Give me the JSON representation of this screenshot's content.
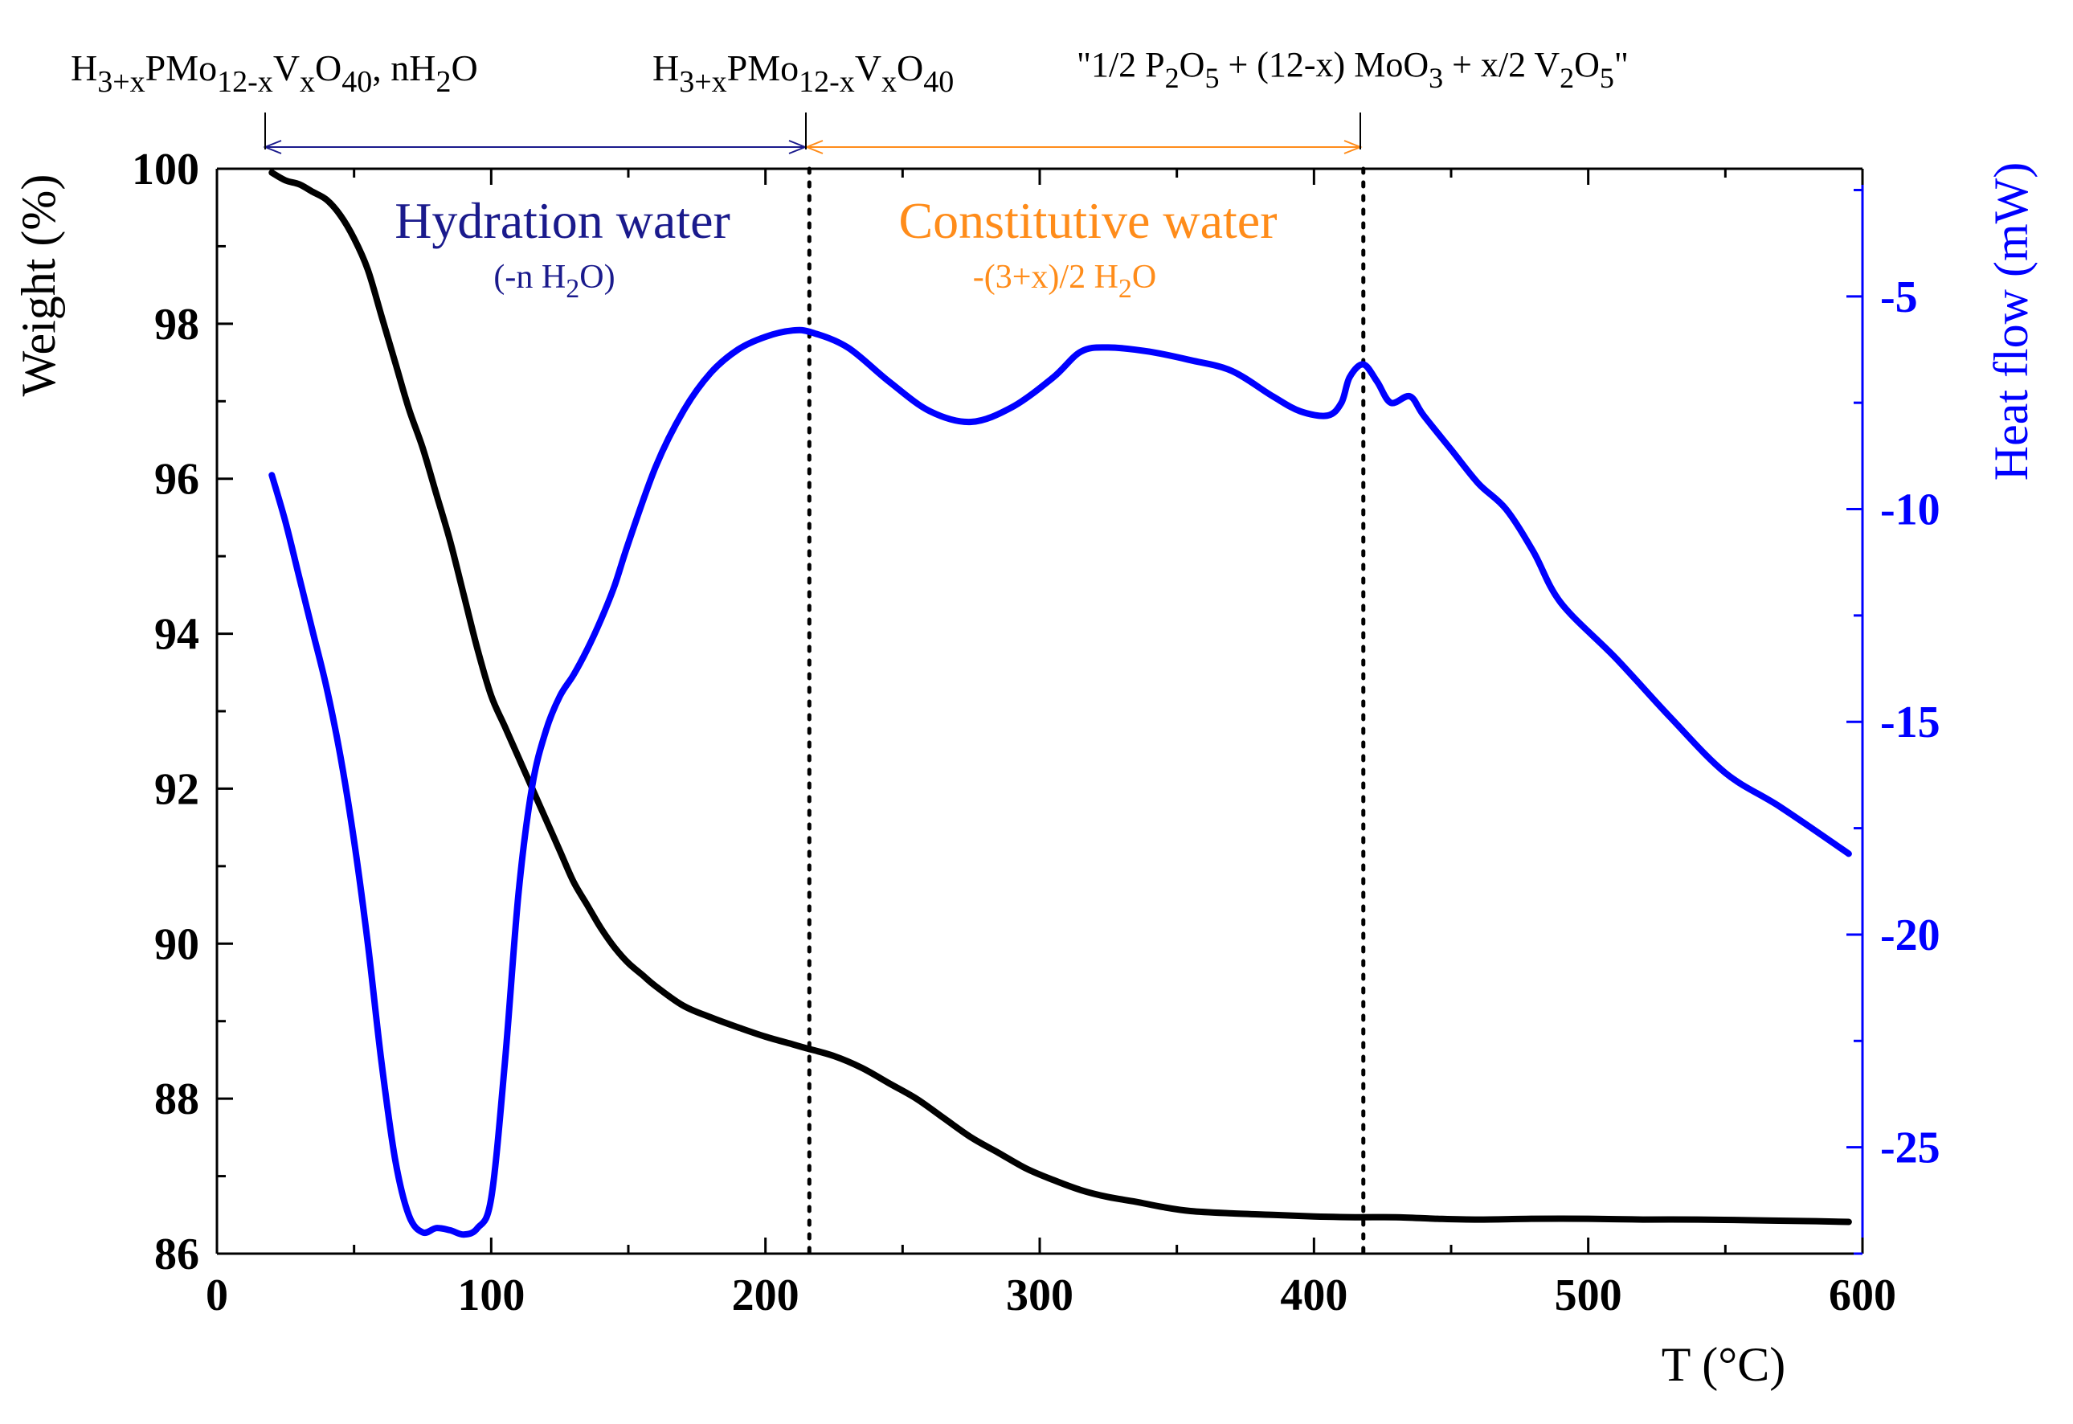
{
  "chart_data": {
    "type": "line",
    "title": "",
    "xlabel": "T (°C)",
    "ylabel_left": "Weight (%)",
    "ylabel_right": "Heat flow (mW)",
    "xlim": [
      0,
      600
    ],
    "ylim_left": [
      86,
      100
    ],
    "ylim_right": [
      -27.5,
      -2
    ],
    "x_ticks": [
      0,
      100,
      200,
      300,
      400,
      500,
      600
    ],
    "y_left_ticks": [
      86,
      88,
      90,
      92,
      94,
      96,
      98,
      100
    ],
    "y_right_ticks": [
      -25,
      -20,
      -15,
      -10,
      -5
    ],
    "x_tick_labels": [
      "0",
      "100",
      "200",
      "300",
      "400",
      "500",
      "600"
    ],
    "y_left_tick_labels": [
      "86",
      "88",
      "90",
      "92",
      "94",
      "96",
      "98",
      "100"
    ],
    "y_right_tick_labels": [
      "-25",
      "-20",
      "-15",
      "-10",
      "-5"
    ],
    "series": [
      {
        "name": "Weight",
        "axis": "left",
        "color": "#000000",
        "x": [
          20,
          25,
          30,
          35,
          40,
          45,
          50,
          55,
          60,
          65,
          70,
          75,
          80,
          85,
          90,
          95,
          100,
          105,
          110,
          115,
          120,
          125,
          130,
          135,
          140,
          145,
          150,
          155,
          160,
          170,
          180,
          190,
          200,
          210,
          215,
          225,
          235,
          245,
          255,
          265,
          275,
          285,
          295,
          305,
          315,
          325,
          335,
          345,
          355,
          370,
          385,
          400,
          415,
          430,
          445,
          460,
          480,
          500,
          520,
          540,
          560,
          580,
          595
        ],
        "y": [
          99.95,
          99.85,
          99.8,
          99.7,
          99.6,
          99.4,
          99.1,
          98.7,
          98.1,
          97.5,
          96.9,
          96.4,
          95.8,
          95.2,
          94.5,
          93.8,
          93.2,
          92.8,
          92.4,
          92.0,
          91.6,
          91.2,
          90.8,
          90.5,
          90.2,
          89.95,
          89.75,
          89.6,
          89.45,
          89.2,
          89.05,
          88.92,
          88.8,
          88.7,
          88.65,
          88.55,
          88.4,
          88.2,
          88.0,
          87.75,
          87.5,
          87.3,
          87.1,
          86.95,
          86.82,
          86.73,
          86.67,
          86.6,
          86.55,
          86.52,
          86.5,
          86.48,
          86.47,
          86.47,
          86.45,
          86.44,
          86.45,
          86.45,
          86.44,
          86.44,
          86.43,
          86.42,
          86.41
        ]
      },
      {
        "name": "Heat flow",
        "axis": "right",
        "color": "#0000ff",
        "x": [
          20,
          25,
          30,
          35,
          40,
          45,
          50,
          55,
          60,
          65,
          70,
          75,
          80,
          85,
          90,
          95,
          100,
          105,
          110,
          115,
          120,
          125,
          130,
          135,
          140,
          145,
          150,
          160,
          170,
          180,
          190,
          200,
          210,
          217,
          230,
          245,
          260,
          275,
          290,
          305,
          315,
          325,
          340,
          355,
          370,
          385,
          395,
          405,
          410,
          413,
          418,
          423,
          428,
          435,
          440,
          450,
          460,
          470,
          480,
          490,
          510,
          530,
          550,
          570,
          595
        ],
        "y": [
          -9.2,
          -10.3,
          -11.6,
          -12.9,
          -14.2,
          -15.8,
          -17.8,
          -20.2,
          -23.0,
          -25.3,
          -26.6,
          -27.0,
          -26.9,
          -26.95,
          -27.05,
          -26.9,
          -26.2,
          -23.0,
          -19.0,
          -16.5,
          -15.2,
          -14.4,
          -13.9,
          -13.3,
          -12.6,
          -11.8,
          -10.8,
          -9.0,
          -7.7,
          -6.8,
          -6.25,
          -5.95,
          -5.8,
          -5.85,
          -6.2,
          -7.0,
          -7.7,
          -7.95,
          -7.6,
          -6.9,
          -6.3,
          -6.2,
          -6.3,
          -6.5,
          -6.75,
          -7.35,
          -7.7,
          -7.8,
          -7.5,
          -6.9,
          -6.6,
          -7.0,
          -7.5,
          -7.35,
          -7.8,
          -8.6,
          -9.4,
          -10.0,
          -11.0,
          -12.2,
          -13.5,
          -14.9,
          -16.2,
          -17.0,
          -18.1
        ]
      }
    ],
    "vlines_x": [
      216,
      418
    ],
    "annotations": {
      "phase1": "H3+xPMo12-xVxO40, nH2O",
      "phase2": "H3+xPMo12-xVxO40",
      "phase3": "\"1/2 P2O5 + (12-x) MoO3 + x/2 V2O5\"",
      "hydration_title": "Hydration water",
      "hydration_sub": "(-n H2O)",
      "constitutive_title": "Constitutive water",
      "constitutive_sub": "-(3+x)/2 H2O"
    },
    "colors": {
      "weight": "#000000",
      "heat_flow": "#0000ff",
      "hydration": "#1a1a8c",
      "constitutive": "#ff8c1a"
    }
  }
}
